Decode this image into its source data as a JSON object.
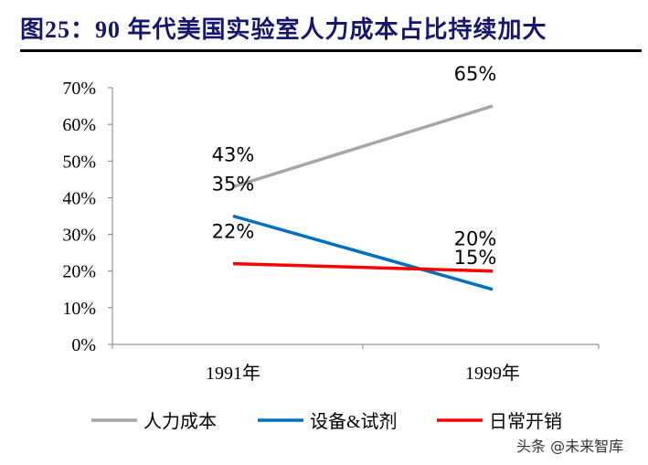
{
  "title": "图25：90 年代美国实验室人力成本占比持续加大",
  "watermark": "头条 @未来智库",
  "chart_data": {
    "type": "line",
    "categories": [
      "1991年",
      "1999年"
    ],
    "ylim": [
      0,
      70
    ],
    "yticks": [
      "0%",
      "10%",
      "20%",
      "30%",
      "40%",
      "50%",
      "60%",
      "70%"
    ],
    "grid": false,
    "legend": "bottom",
    "series": [
      {
        "name": "人力成本",
        "values": [
          43,
          65
        ],
        "labels": [
          "43%",
          "65%"
        ],
        "color": "#a6a6a6"
      },
      {
        "name": "设备&试剂",
        "values": [
          35,
          15
        ],
        "labels": [
          "35%",
          "15%"
        ],
        "color": "#0070c0"
      },
      {
        "name": "日常开销",
        "values": [
          22,
          20
        ],
        "labels": [
          "22%",
          "20%"
        ],
        "color": "#ff0000"
      }
    ]
  }
}
